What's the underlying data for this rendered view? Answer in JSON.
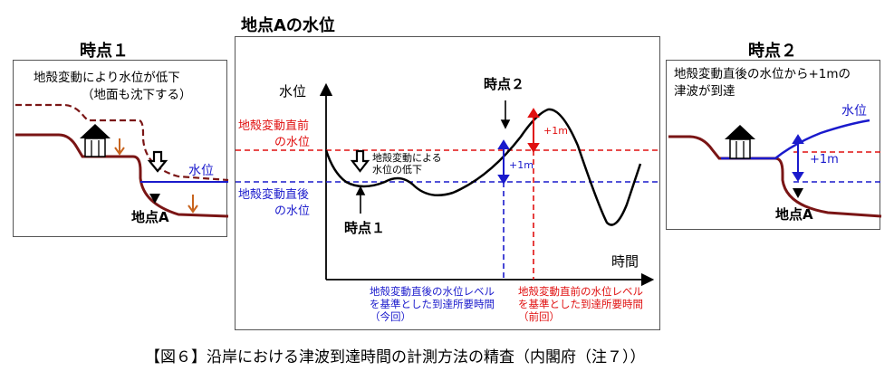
{
  "left": {
    "title": "時点１",
    "note_line1": "地殻変動により水位が低下",
    "note_line2": "（地面も沈下する）",
    "water_label": "水位",
    "point_label": "地点A"
  },
  "center": {
    "title": "地点Aの水位",
    "y_axis_label": "水位",
    "x_axis_label": "時間",
    "before_label_1": "地殻変動直前",
    "before_label_2": "の水位",
    "after_label_1": "地殻変動直後",
    "after_label_2": "の水位",
    "drop_note_1": "地殻変動による",
    "drop_note_2": "水位の低下",
    "time1_label": "時点１",
    "time2_label": "時点２",
    "plus1m_red": "+1m",
    "plus1m_blue": "+1m",
    "blue_note_1": "地殻変動直後の水位レベル",
    "blue_note_2": "を基準とした到達所要時間",
    "blue_note_3": "（今回）",
    "red_note_1": "地殻変動直前の水位レベル",
    "red_note_2": "を基準とした到達所要時間",
    "red_note_3": "（前回）"
  },
  "right": {
    "title": "時点２",
    "note_line1": "地殻変動直後の水位から+1mの",
    "note_line2": "津波が到達",
    "water_label": "水位",
    "plus1m": "+1m",
    "point_label": "地点A"
  },
  "caption": "【図６】沿岸における津波到達時間の計測方法の精査（内閣府（注７））",
  "colors": {
    "ground": "#7a1515",
    "arrow_brown": "#c8641e",
    "blue": "#1a1acc",
    "red": "#e01010"
  }
}
